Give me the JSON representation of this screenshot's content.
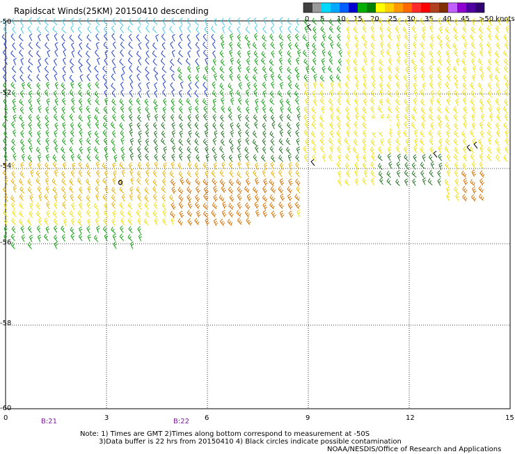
{
  "title": "Rapidscat Winds(25KM) 20150410 descending",
  "legend": {
    "ticks": [
      "0",
      "5",
      "10",
      "15",
      "20",
      "25",
      "30",
      "35",
      "40",
      "45",
      ">50 knots"
    ],
    "colors": [
      "#404040",
      "#9a9a9a",
      "#00d8ff",
      "#00a8ff",
      "#0060ff",
      "#0000d0",
      "#00b000",
      "#008000",
      "#ffff00",
      "#ffd000",
      "#ff9a00",
      "#ff6a00",
      "#ff2a2a",
      "#ff0000",
      "#b04020",
      "#803000",
      "#c060ff",
      "#9000d0",
      "#5000a0",
      "#300070"
    ]
  },
  "map": {
    "lat_labels": [
      "-50",
      "-52",
      "-54",
      "-56",
      "-58",
      "-60"
    ],
    "lon_labels": [
      "0",
      "3",
      "6",
      "9",
      "12",
      "15"
    ],
    "time_labels": [
      "B:21",
      "B:22"
    ]
  },
  "notes": {
    "line1": "Note: 1) Times are GMT 2)Times along bottom correspond to measurement at -50S",
    "line2": "3)Data buffer is 22 hrs from 20150410 4) Black circles indicate possible contamination",
    "line3": "NOAA/NESDIS/Office of Research and Applications"
  },
  "wind_colors": {
    "light": "#40c8e8",
    "blue": "#1a3ad0",
    "green": "#10a010",
    "darkgreen": "#207020",
    "yellow": "#f0e000",
    "gold": "#e8b000",
    "orange": "#d87000",
    "black": "#000000"
  }
}
